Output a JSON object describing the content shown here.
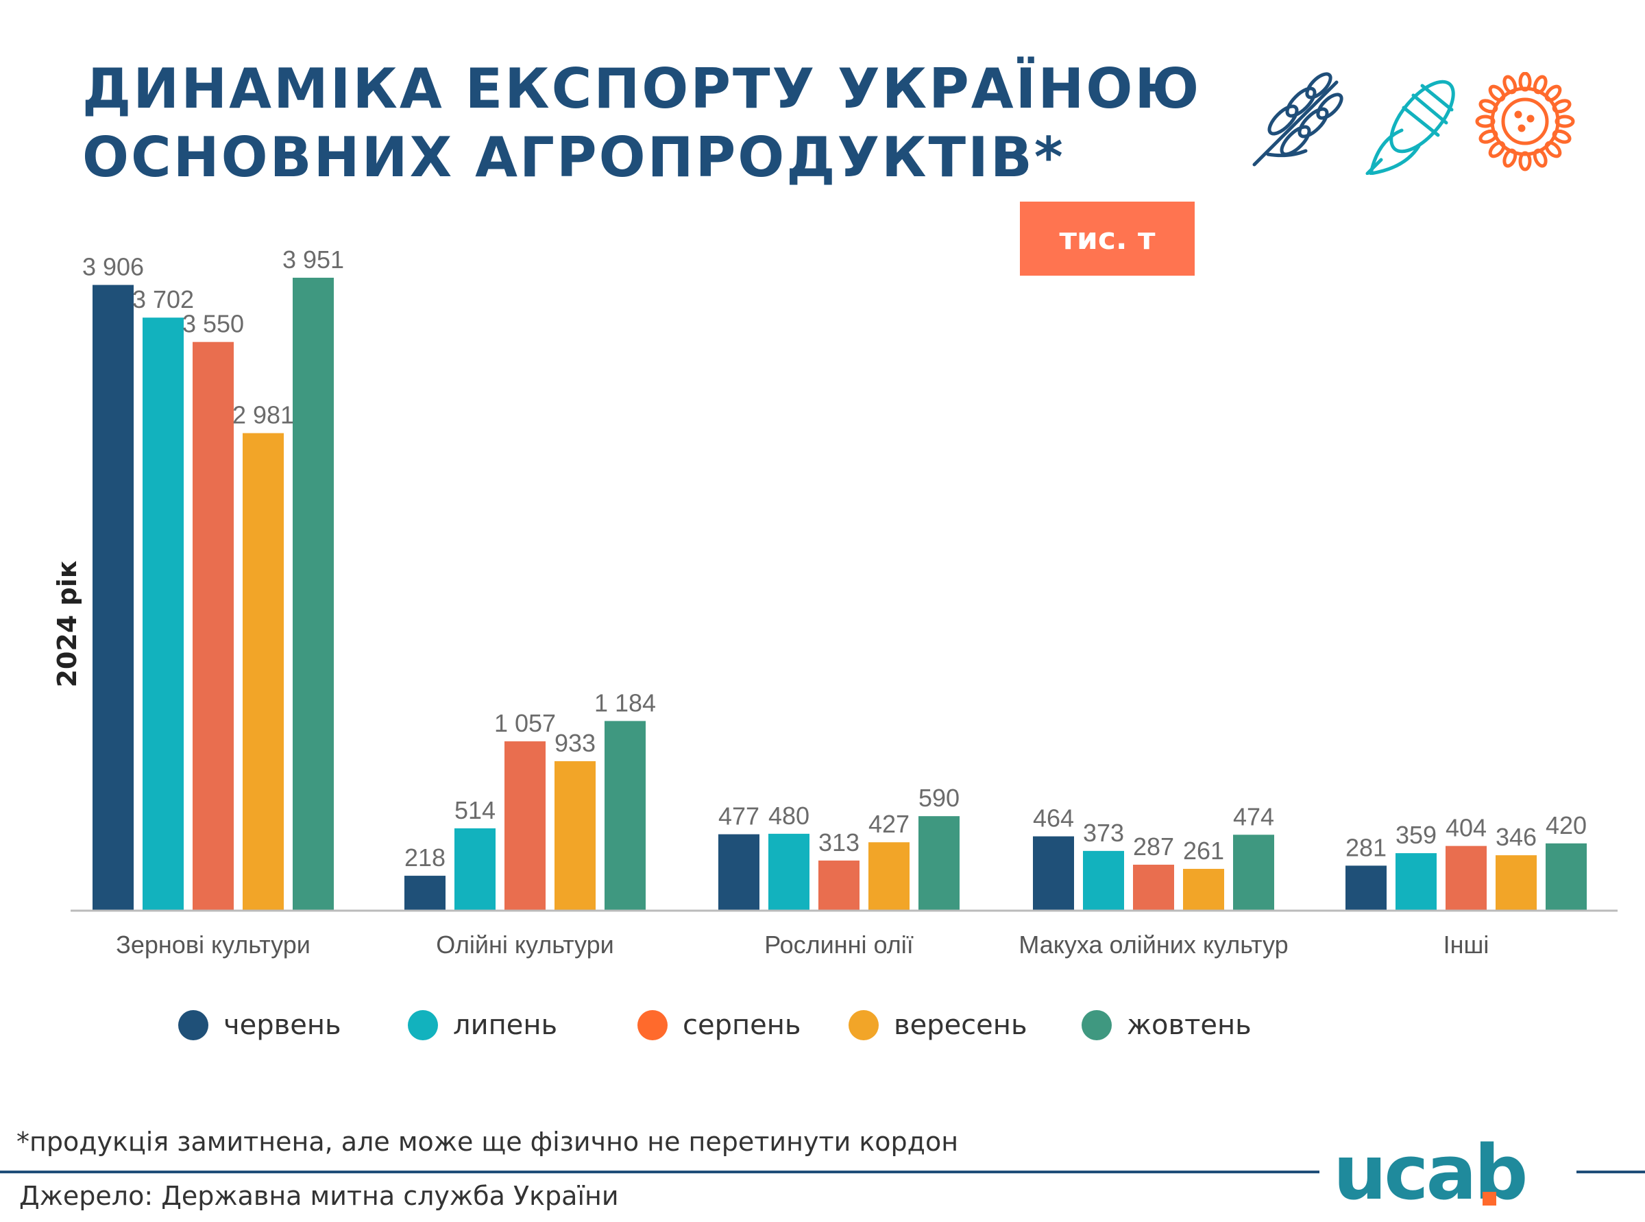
{
  "header": {
    "title_line1": "ДИНАМІКА ЕКСПОРТУ УКРАЇНОЮ",
    "title_line2": "ОСНОВНИХ АГРОПРОДУКТІВ*",
    "icons": [
      "wheat-icon",
      "corn-icon",
      "sunflower-icon"
    ]
  },
  "unit_badge": "тис. т",
  "year_label": "2024 рік",
  "chart_data": {
    "type": "bar",
    "categories": [
      "Зернові культури",
      "Олійні культури",
      "Рослинні олії",
      "Макуха олійних культур",
      "Інші"
    ],
    "series": [
      {
        "name": "червень",
        "color": "#1f5078",
        "values": [
          3906,
          218,
          477,
          464,
          281
        ],
        "labels": [
          "3 906",
          "218",
          "477",
          "464",
          "281"
        ]
      },
      {
        "name": "липень",
        "color": "#12b2be",
        "values": [
          3702,
          514,
          480,
          373,
          359
        ],
        "labels": [
          "3 702",
          "514",
          "480",
          "373",
          "359"
        ]
      },
      {
        "name": "серпень",
        "color": "#e96e4f",
        "values": [
          3550,
          1057,
          313,
          287,
          404
        ],
        "labels": [
          "3 550",
          "1 057",
          "313",
          "287",
          "404"
        ]
      },
      {
        "name": "вересень",
        "color": "#f2a528",
        "values": [
          2981,
          933,
          427,
          261,
          346
        ],
        "labels": [
          "2 981",
          "933",
          "427",
          "261",
          "346"
        ]
      },
      {
        "name": "жовтень",
        "color": "#3f9880",
        "values": [
          3951,
          1184,
          590,
          474,
          420
        ],
        "labels": [
          "3 951",
          "1 184",
          "590",
          "474",
          "420"
        ]
      }
    ],
    "legend_position": "bottom",
    "grid": false
  },
  "legend_dot_colors": [
    "#1f5078",
    "#12b2be",
    "#ff6a2c",
    "#f2a528",
    "#3f9880"
  ],
  "footnote": "*продукція замитнена, але може ще фізично не перетинути кордон",
  "source": "Джерело: Державна митна служба України",
  "logo_text": "ucab",
  "colors": {
    "title": "#1f4e79",
    "badge": "#ff7450",
    "logo": "#1f8a9c",
    "logo_accent": "#ff6a2c"
  }
}
